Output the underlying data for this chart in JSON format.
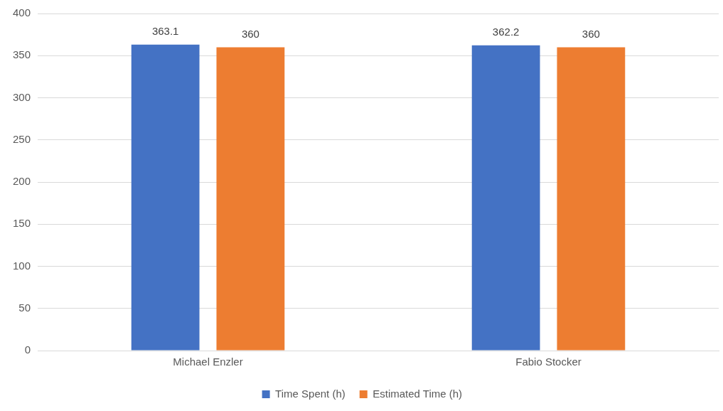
{
  "chart_data": {
    "type": "bar",
    "categories": [
      "Michael Enzler",
      "Fabio Stocker"
    ],
    "series": [
      {
        "name": "Time Spent (h)",
        "color": "#4472c4",
        "values": [
          363.1,
          362.2
        ]
      },
      {
        "name": "Estimated Time (h)",
        "color": "#ed7d31",
        "values": [
          360,
          360
        ]
      }
    ],
    "ylim": [
      0,
      400
    ],
    "yticks": [
      0,
      50,
      100,
      150,
      200,
      250,
      300,
      350,
      400
    ],
    "grid": "y",
    "legend": "bottom",
    "data_labels": true
  }
}
